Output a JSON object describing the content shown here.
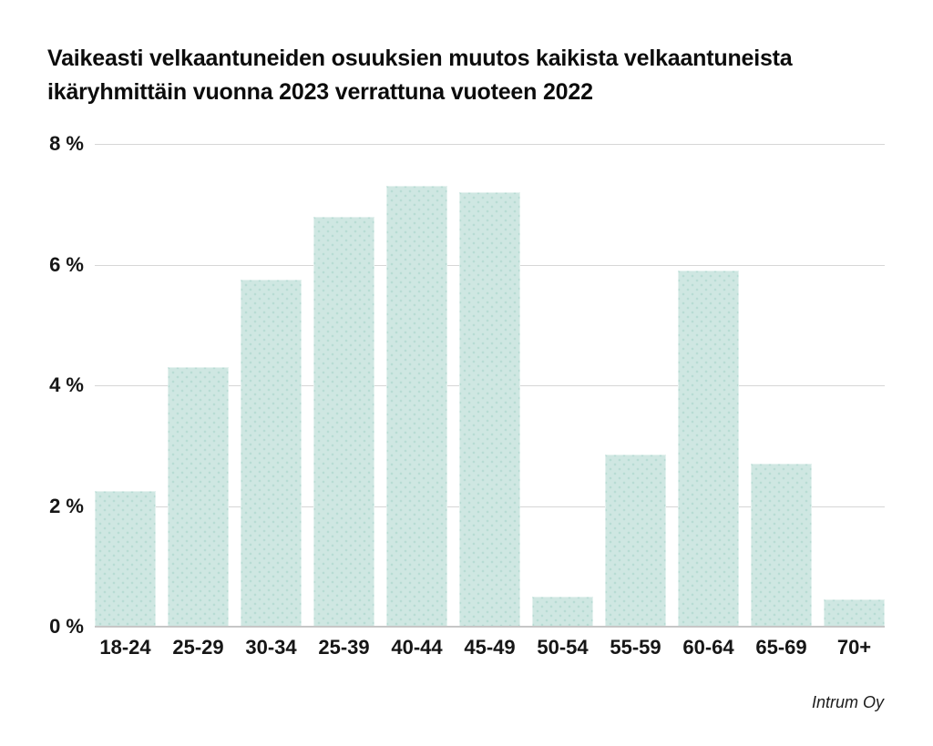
{
  "chart_data": {
    "type": "bar",
    "title": "Vaikeasti velkaantuneiden osuuksien muutos kaikista velkaantuneista ikäryhmittäin vuonna 2023 verrattuna vuoteen 2022",
    "title_lines": [
      "Vaikeasti velkaantuneiden osuuksien muutos kaikista velkaantuneista",
      "ikäryhmittäin vuonna 2023 verrattuna vuoteen 2022"
    ],
    "categories": [
      "18-24",
      "25-29",
      "30-34",
      "25-39",
      "40-44",
      "45-49",
      "50-54",
      "55-59",
      "60-64",
      "65-69",
      "70+"
    ],
    "values": [
      2.25,
      4.3,
      5.75,
      6.8,
      7.3,
      7.2,
      0.5,
      2.85,
      5.9,
      2.7,
      0.45
    ],
    "xlabel": "",
    "ylabel": "",
    "y_ticks": [
      "8 %",
      "6 %",
      "4 %",
      "2 %",
      "0 %"
    ],
    "y_tick_values": [
      8,
      6,
      4,
      2,
      0
    ],
    "ylim": [
      0,
      8
    ],
    "grid": true,
    "legend": "none",
    "colors": {
      "bar_fill": "#cfe7e2",
      "bar_dot": "#b7dbd3",
      "gridline": "#d6d6d6",
      "axis_line": "#c6c6c6",
      "text": "#111111",
      "background": "#ffffff"
    }
  },
  "attribution": "Intrum Oy"
}
